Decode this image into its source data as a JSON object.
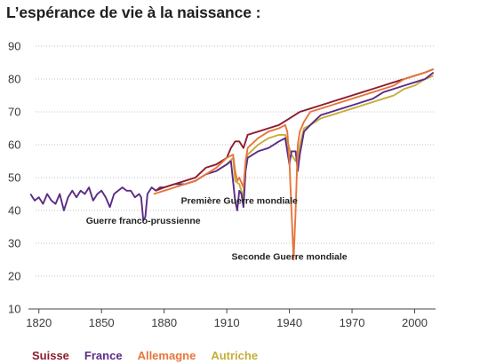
{
  "chart_data": {
    "type": "line",
    "title": "L’espérance de vie à la naissance :",
    "xlabel": "",
    "ylabel": "",
    "xlim": [
      1815,
      2010
    ],
    "ylim": [
      10,
      90
    ],
    "x_ticks": [
      "1820",
      "1850",
      "1880",
      "1910",
      "1940",
      "1970",
      "2000"
    ],
    "y_ticks": [
      "10",
      "20",
      "30",
      "40",
      "50",
      "60",
      "70",
      "80",
      "90"
    ],
    "grid": "horizontal dotted",
    "legend_position": "bottom-left",
    "annotations": [
      {
        "text": "Première Guerre mondiale",
        "x": 1916,
        "y": 42
      },
      {
        "text": "Guerre franco-prussienne",
        "x": 1870,
        "y": 36
      },
      {
        "text": "Seconde Guerre mondiale",
        "x": 1940,
        "y": 25
      }
    ],
    "series": [
      {
        "name": "Suisse",
        "color": "#8c1d2e",
        "points": [
          [
            1876,
            46
          ],
          [
            1880,
            47
          ],
          [
            1885,
            48
          ],
          [
            1890,
            49
          ],
          [
            1895,
            50
          ],
          [
            1900,
            53
          ],
          [
            1905,
            54
          ],
          [
            1910,
            56
          ],
          [
            1912,
            59
          ],
          [
            1914,
            61
          ],
          [
            1916,
            61
          ],
          [
            1918,
            59
          ],
          [
            1920,
            63
          ],
          [
            1925,
            64
          ],
          [
            1930,
            65
          ],
          [
            1935,
            66
          ],
          [
            1940,
            68
          ],
          [
            1945,
            70
          ],
          [
            1950,
            71
          ],
          [
            1955,
            72
          ],
          [
            1960,
            73
          ],
          [
            1965,
            74
          ],
          [
            1970,
            75
          ],
          [
            1975,
            76
          ],
          [
            1980,
            77
          ],
          [
            1985,
            78
          ],
          [
            1990,
            79
          ],
          [
            1995,
            80
          ],
          [
            2000,
            81
          ],
          [
            2005,
            82
          ],
          [
            2009,
            83
          ]
        ]
      },
      {
        "name": "France",
        "color": "#5b2c86",
        "points": [
          [
            1816,
            45
          ],
          [
            1818,
            43
          ],
          [
            1820,
            44
          ],
          [
            1822,
            42
          ],
          [
            1824,
            45
          ],
          [
            1826,
            43
          ],
          [
            1828,
            42
          ],
          [
            1830,
            45
          ],
          [
            1832,
            40
          ],
          [
            1834,
            44
          ],
          [
            1836,
            46
          ],
          [
            1838,
            44
          ],
          [
            1840,
            46
          ],
          [
            1842,
            45
          ],
          [
            1844,
            47
          ],
          [
            1846,
            43
          ],
          [
            1848,
            45
          ],
          [
            1850,
            46
          ],
          [
            1852,
            44
          ],
          [
            1854,
            41
          ],
          [
            1856,
            45
          ],
          [
            1858,
            46
          ],
          [
            1860,
            47
          ],
          [
            1862,
            46
          ],
          [
            1864,
            46
          ],
          [
            1866,
            44
          ],
          [
            1868,
            45
          ],
          [
            1869,
            44
          ],
          [
            1870,
            37
          ],
          [
            1871,
            38
          ],
          [
            1872,
            45
          ],
          [
            1874,
            47
          ],
          [
            1876,
            46
          ],
          [
            1878,
            47
          ],
          [
            1880,
            47
          ],
          [
            1885,
            48
          ],
          [
            1890,
            48
          ],
          [
            1895,
            49
          ],
          [
            1900,
            51
          ],
          [
            1905,
            52
          ],
          [
            1910,
            54
          ],
          [
            1912,
            55
          ],
          [
            1914,
            43
          ],
          [
            1915,
            40
          ],
          [
            1916,
            46
          ],
          [
            1917,
            45
          ],
          [
            1918,
            41
          ],
          [
            1919,
            52
          ],
          [
            1920,
            56
          ],
          [
            1925,
            58
          ],
          [
            1930,
            59
          ],
          [
            1935,
            61
          ],
          [
            1938,
            62
          ],
          [
            1940,
            54
          ],
          [
            1941,
            58
          ],
          [
            1943,
            58
          ],
          [
            1944,
            52
          ],
          [
            1945,
            57
          ],
          [
            1947,
            64
          ],
          [
            1950,
            66
          ],
          [
            1955,
            69
          ],
          [
            1960,
            70
          ],
          [
            1965,
            71
          ],
          [
            1970,
            72
          ],
          [
            1975,
            73
          ],
          [
            1980,
            74
          ],
          [
            1985,
            76
          ],
          [
            1990,
            77
          ],
          [
            1995,
            78
          ],
          [
            2000,
            79
          ],
          [
            2005,
            80
          ],
          [
            2009,
            82
          ]
        ]
      },
      {
        "name": "Allemagne",
        "color": "#e8753a",
        "points": [
          [
            1875,
            45
          ],
          [
            1880,
            46
          ],
          [
            1885,
            47
          ],
          [
            1890,
            48
          ],
          [
            1895,
            49
          ],
          [
            1900,
            51
          ],
          [
            1905,
            53
          ],
          [
            1910,
            56
          ],
          [
            1913,
            57
          ],
          [
            1914,
            52
          ],
          [
            1915,
            49
          ],
          [
            1916,
            50
          ],
          [
            1918,
            47
          ],
          [
            1919,
            55
          ],
          [
            1920,
            59
          ],
          [
            1925,
            62
          ],
          [
            1930,
            64
          ],
          [
            1935,
            65
          ],
          [
            1938,
            66
          ],
          [
            1939,
            64
          ],
          [
            1940,
            55
          ],
          [
            1941,
            40
          ],
          [
            1942,
            25
          ],
          [
            1943,
            40
          ],
          [
            1944,
            60
          ],
          [
            1945,
            64
          ],
          [
            1947,
            67
          ],
          [
            1950,
            70
          ],
          [
            1955,
            71
          ],
          [
            1960,
            72
          ],
          [
            1965,
            73
          ],
          [
            1970,
            74
          ],
          [
            1975,
            75
          ],
          [
            1980,
            76
          ],
          [
            1985,
            77
          ],
          [
            1990,
            78
          ],
          [
            1995,
            80
          ],
          [
            2000,
            81
          ],
          [
            2005,
            82
          ],
          [
            2009,
            83
          ]
        ]
      },
      {
        "name": "Autriche",
        "color": "#c4ae39",
        "points": [
          [
            1905,
            52
          ],
          [
            1910,
            54
          ],
          [
            1913,
            56
          ],
          [
            1914,
            49
          ],
          [
            1916,
            48
          ],
          [
            1918,
            44
          ],
          [
            1919,
            54
          ],
          [
            1920,
            57
          ],
          [
            1925,
            60
          ],
          [
            1930,
            62
          ],
          [
            1935,
            63
          ],
          [
            1938,
            63
          ],
          [
            1941,
            57
          ],
          [
            1943,
            55
          ],
          [
            1944,
            55
          ],
          [
            1945,
            60
          ],
          [
            1947,
            65
          ],
          [
            1950,
            66
          ],
          [
            1955,
            68
          ],
          [
            1960,
            69
          ],
          [
            1965,
            70
          ],
          [
            1970,
            71
          ],
          [
            1975,
            72
          ],
          [
            1980,
            73
          ],
          [
            1985,
            74
          ],
          [
            1990,
            75
          ],
          [
            1995,
            77
          ],
          [
            2000,
            78
          ],
          [
            2005,
            80
          ],
          [
            2009,
            81
          ]
        ]
      }
    ]
  }
}
